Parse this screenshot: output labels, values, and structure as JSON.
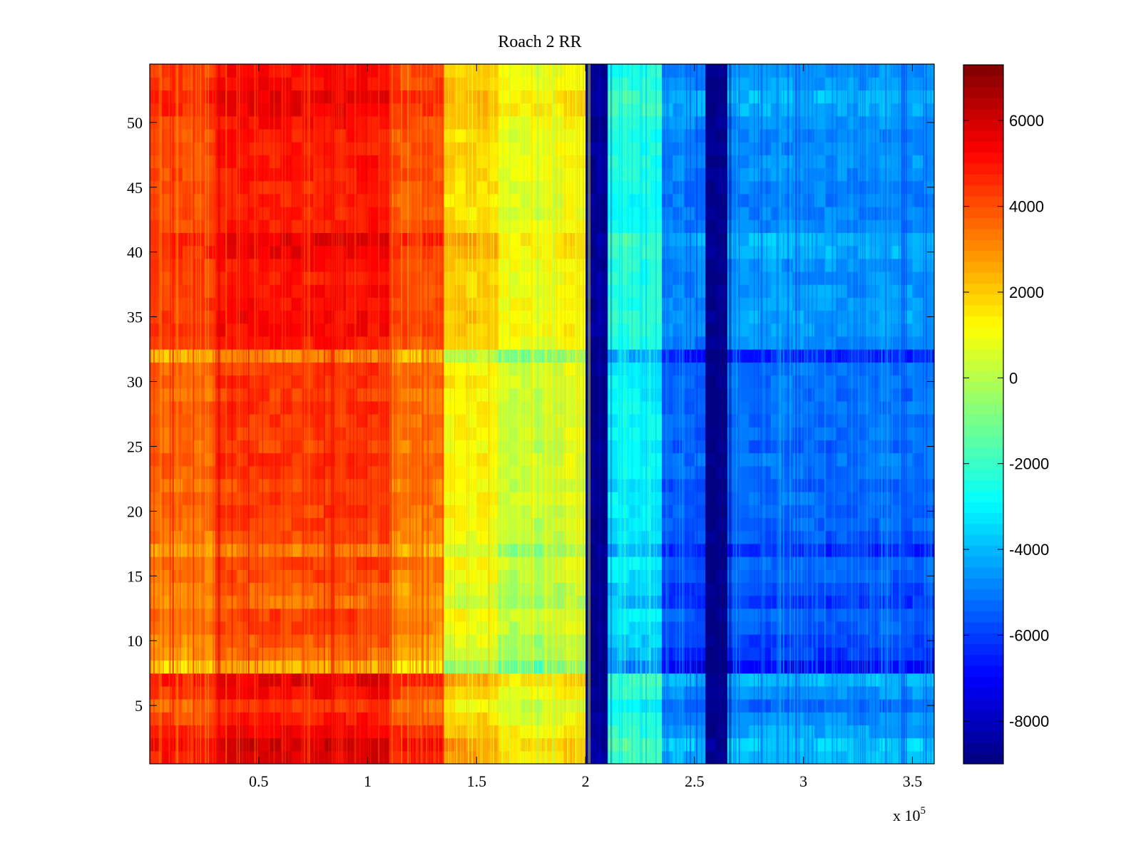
{
  "chart_data": {
    "type": "heatmap",
    "title": "Roach 2 RR",
    "xlabel": "",
    "ylabel": "",
    "x_exponent_label": "x 10",
    "x_exponent_power": "5",
    "xlim": [
      0,
      3.6
    ],
    "ylim": [
      0.5,
      54.5
    ],
    "x_ticks": [
      0.5,
      1,
      1.5,
      2,
      2.5,
      3,
      3.5
    ],
    "x_tick_labels": [
      "0.5",
      "1",
      "1.5",
      "2",
      "2.5",
      "3",
      "3.5"
    ],
    "y_ticks": [
      5,
      10,
      15,
      20,
      25,
      30,
      35,
      40,
      45,
      50
    ],
    "y_tick_labels": [
      "5",
      "10",
      "15",
      "20",
      "25",
      "30",
      "35",
      "40",
      "45",
      "50"
    ],
    "colormap": "jet",
    "clim": [
      -9000,
      7300
    ],
    "colorbar_ticks": [
      6000,
      4000,
      2000,
      0,
      -2000,
      -4000,
      -6000,
      -8000
    ],
    "colorbar_tick_labels": [
      "6000",
      "4000",
      "2000",
      "0",
      "-2000",
      "-4000",
      "-6000",
      "-8000"
    ],
    "rows": 54,
    "x_segments": [
      {
        "x_start": 0.0,
        "x_end": 0.3,
        "value": 3800
      },
      {
        "x_start": 0.3,
        "x_end": 1.1,
        "value": 4600
      },
      {
        "x_start": 1.1,
        "x_end": 1.35,
        "value": 3600
      },
      {
        "x_start": 1.35,
        "x_end": 1.6,
        "value": 1500
      },
      {
        "x_start": 1.6,
        "x_end": 1.9,
        "value": 500
      },
      {
        "x_start": 1.9,
        "x_end": 2.02,
        "value": 900
      },
      {
        "x_start": 2.02,
        "x_end": 2.12,
        "value": -8800
      },
      {
        "x_start": 2.12,
        "x_end": 2.35,
        "value": -2800
      },
      {
        "x_start": 2.35,
        "x_end": 2.55,
        "value": -5200
      },
      {
        "x_start": 2.55,
        "x_end": 2.67,
        "value": -8900
      },
      {
        "x_start": 2.67,
        "x_end": 3.6,
        "value": -5000
      }
    ],
    "row_offsets": {
      "1": 1200,
      "2": 1500,
      "3": 800,
      "4": 300,
      "5": -300,
      "6": 600,
      "7": 1100,
      "8": -2200,
      "9": -1200,
      "10": -900,
      "11": -500,
      "12": -300,
      "13": -1200,
      "14": -900,
      "15": -500,
      "16": -300,
      "17": -1400,
      "18": -600,
      "19": -400,
      "20": -300,
      "21": -200,
      "22": -500,
      "23": -200,
      "24": -100,
      "25": -400,
      "26": -200,
      "27": -200,
      "28": -100,
      "29": -300,
      "30": -100,
      "31": -200,
      "32": -1600,
      "33": 300,
      "34": 600,
      "35": 700,
      "36": 600,
      "37": 500,
      "38": 400,
      "39": 500,
      "40": 900,
      "41": 1100,
      "42": 300,
      "43": 200,
      "44": 100,
      "45": 200,
      "46": 300,
      "47": 400,
      "48": 300,
      "49": 200,
      "50": 500,
      "51": 900,
      "52": 1100,
      "53": 600,
      "54": 500
    }
  }
}
